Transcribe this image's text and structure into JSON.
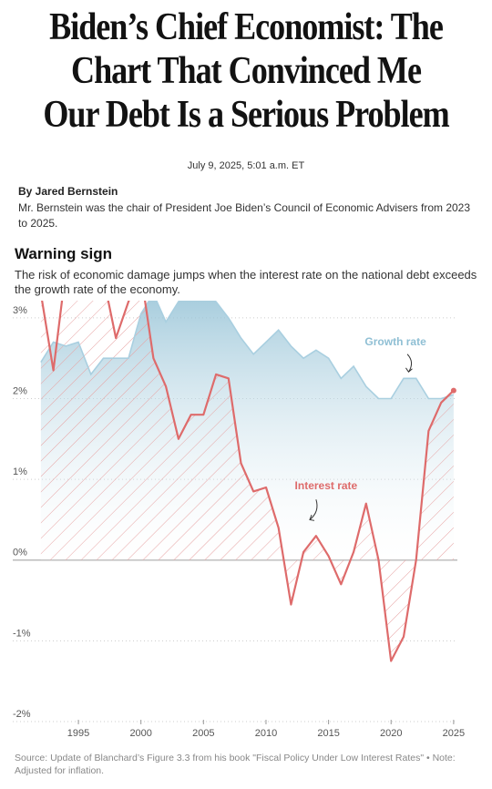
{
  "article": {
    "headline": "Biden’s Chief Economist: The Chart That Convinced Me Our Debt Is a Serious Problem",
    "date": "July 9, 2025, 5:01 a.m. ET",
    "byline": "By Jared Bernstein",
    "bio": "Mr. Bernstein was the chair of President Joe Biden’s Council of Economic Advisers from 2023 to 2025."
  },
  "chart_data": {
    "type": "area",
    "title": "Warning sign",
    "subtitle": "The risk of economic damage jumps when the interest rate on the national debt exceeds the growth rate of the economy.",
    "xlabel": "",
    "ylabel": "",
    "xlim": [
      1991.5,
      2025.3
    ],
    "ylim": [
      -2,
      3.1
    ],
    "x_ticks": [
      1995,
      2000,
      2005,
      2010,
      2015,
      2020,
      2025
    ],
    "y_ticks": [
      {
        "value": 3,
        "label": "3%"
      },
      {
        "value": 2,
        "label": "2%"
      },
      {
        "value": 1,
        "label": "1%"
      },
      {
        "value": 0,
        "label": "0%"
      },
      {
        "value": -1,
        "label": "-1%"
      },
      {
        "value": -2,
        "label": "-2%"
      }
    ],
    "grid": "horizontal dotted",
    "series": [
      {
        "name": "Growth rate",
        "color": "#a9cfe0",
        "x": [
          1992,
          1993,
          1994,
          1995,
          1996,
          1997,
          1998,
          1999,
          2000,
          2001,
          2002,
          2003,
          2004,
          2005,
          2006,
          2007,
          2008,
          2009,
          2010,
          2011,
          2012,
          2013,
          2014,
          2015,
          2016,
          2017,
          2018,
          2019,
          2020,
          2021,
          2022,
          2023,
          2024,
          2025
        ],
        "values": [
          2.45,
          2.7,
          2.65,
          2.7,
          2.3,
          2.5,
          2.5,
          2.5,
          3.05,
          3.3,
          2.95,
          3.2,
          3.4,
          3.3,
          3.2,
          3.0,
          2.75,
          2.55,
          2.7,
          2.85,
          2.65,
          2.5,
          2.6,
          2.5,
          2.25,
          2.4,
          2.15,
          2.0,
          2.0,
          2.25,
          2.25,
          2.0,
          2.0,
          2.05
        ]
      },
      {
        "name": "Interest rate",
        "color": "#de6b6b",
        "x": [
          1992,
          1993,
          1994,
          1995,
          1996,
          1997,
          1998,
          1999,
          2000,
          2001,
          2002,
          2003,
          2004,
          2005,
          2006,
          2007,
          2008,
          2009,
          2010,
          2011,
          2012,
          2013,
          2014,
          2015,
          2016,
          2017,
          2018,
          2019,
          2020,
          2021,
          2022,
          2023,
          2024,
          2025
        ],
        "values": [
          3.3,
          2.35,
          3.6,
          3.4,
          3.45,
          3.5,
          2.75,
          3.2,
          3.55,
          2.5,
          2.15,
          1.5,
          1.8,
          1.8,
          2.3,
          2.25,
          1.2,
          0.85,
          0.9,
          0.4,
          -0.55,
          0.1,
          0.3,
          0.05,
          -0.3,
          0.1,
          0.7,
          0.0,
          -1.25,
          -0.95,
          0.0,
          1.6,
          1.95,
          2.1
        ]
      }
    ],
    "annotations": [
      {
        "text": "Growth rate",
        "series": "Growth rate"
      },
      {
        "text": "Interest rate",
        "series": "Interest rate"
      }
    ]
  },
  "source": "Source: Update of Blanchard’s Figure 3.3 from his book \"Fiscal Policy Under Low Interest Rates\" • Note: Adjusted for inflation."
}
